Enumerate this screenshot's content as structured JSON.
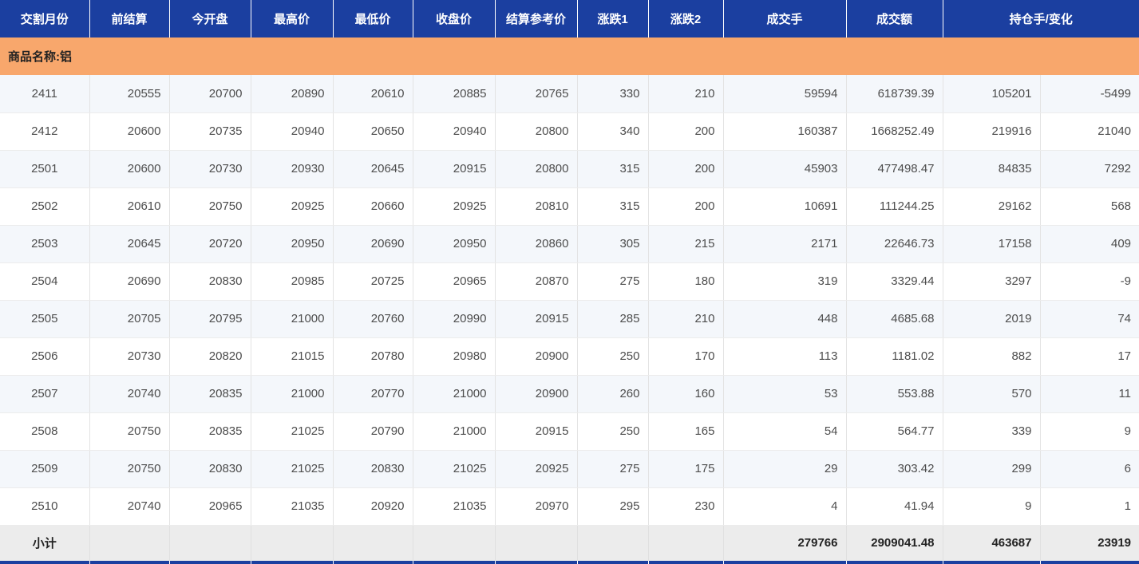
{
  "colors": {
    "header_blue": "#1b3fa0",
    "group_orange": "#f8a76c",
    "row_alt": "#f4f7fb",
    "subtotal_bg": "#ececec"
  },
  "table": {
    "header": [
      {
        "label": "交割月份"
      },
      {
        "label": "前结算"
      },
      {
        "label": "今开盘"
      },
      {
        "label": "最高价"
      },
      {
        "label": "最低价"
      },
      {
        "label": "收盘价"
      },
      {
        "label": "结算参考价"
      },
      {
        "label": "涨跌1"
      },
      {
        "label": "涨跌2"
      },
      {
        "label": "成交手"
      },
      {
        "label": "成交额"
      },
      {
        "label": "持仓手/变化",
        "span": 2
      }
    ],
    "column_keys": [
      "delivery_month",
      "prev_settlement",
      "open",
      "high",
      "low",
      "close",
      "settlement_ref",
      "change1",
      "change2",
      "volume",
      "turnover",
      "open_interest",
      "oi_change"
    ],
    "group_label": "商品名称:铝",
    "rows": [
      [
        "2411",
        "20555",
        "20700",
        "20890",
        "20610",
        "20885",
        "20765",
        "330",
        "210",
        "59594",
        "618739.39",
        "105201",
        "-5499"
      ],
      [
        "2412",
        "20600",
        "20735",
        "20940",
        "20650",
        "20940",
        "20800",
        "340",
        "200",
        "160387",
        "1668252.49",
        "219916",
        "21040"
      ],
      [
        "2501",
        "20600",
        "20730",
        "20930",
        "20645",
        "20915",
        "20800",
        "315",
        "200",
        "45903",
        "477498.47",
        "84835",
        "7292"
      ],
      [
        "2502",
        "20610",
        "20750",
        "20925",
        "20660",
        "20925",
        "20810",
        "315",
        "200",
        "10691",
        "111244.25",
        "29162",
        "568"
      ],
      [
        "2503",
        "20645",
        "20720",
        "20950",
        "20690",
        "20950",
        "20860",
        "305",
        "215",
        "2171",
        "22646.73",
        "17158",
        "409"
      ],
      [
        "2504",
        "20690",
        "20830",
        "20985",
        "20725",
        "20965",
        "20870",
        "275",
        "180",
        "319",
        "3329.44",
        "3297",
        "-9"
      ],
      [
        "2505",
        "20705",
        "20795",
        "21000",
        "20760",
        "20990",
        "20915",
        "285",
        "210",
        "448",
        "4685.68",
        "2019",
        "74"
      ],
      [
        "2506",
        "20730",
        "20820",
        "21015",
        "20780",
        "20980",
        "20900",
        "250",
        "170",
        "113",
        "1181.02",
        "882",
        "17"
      ],
      [
        "2507",
        "20740",
        "20835",
        "21000",
        "20770",
        "21000",
        "20900",
        "260",
        "160",
        "53",
        "553.88",
        "570",
        "11"
      ],
      [
        "2508",
        "20750",
        "20835",
        "21025",
        "20790",
        "21000",
        "20915",
        "250",
        "165",
        "54",
        "564.77",
        "339",
        "9"
      ],
      [
        "2509",
        "20750",
        "20830",
        "21025",
        "20830",
        "21025",
        "20925",
        "275",
        "175",
        "29",
        "303.42",
        "299",
        "6"
      ],
      [
        "2510",
        "20740",
        "20965",
        "21035",
        "20920",
        "21035",
        "20970",
        "295",
        "230",
        "4",
        "41.94",
        "9",
        "1"
      ]
    ],
    "subtotal": {
      "label": "小计",
      "volume": "279766",
      "turnover": "2909041.48",
      "open_interest": "463687",
      "oi_change": "23919"
    }
  }
}
